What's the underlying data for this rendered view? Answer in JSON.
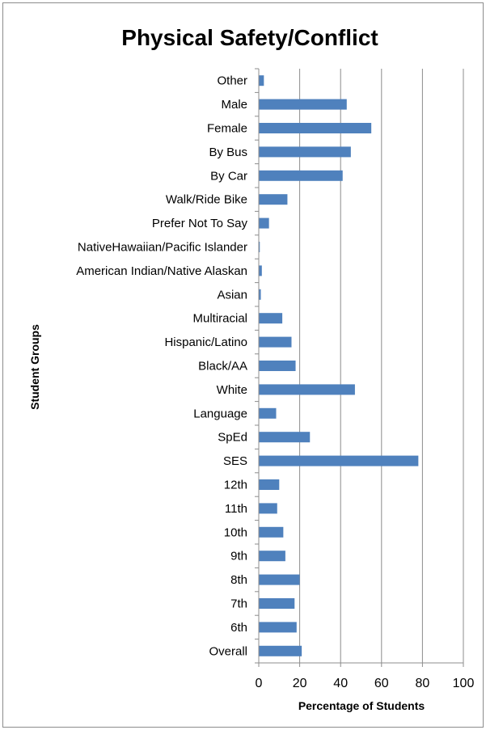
{
  "chart_data": {
    "type": "bar",
    "orientation": "horizontal",
    "title": "Physical Safety/Conflict",
    "xlabel": "Percentage of Students",
    "ylabel": "Student Groups",
    "xlim": [
      0,
      100
    ],
    "x_ticks": [
      "0",
      "20",
      "40",
      "60",
      "80",
      "100"
    ],
    "grid": true,
    "legend": "none",
    "bar_color": "#4f81bd",
    "categories": [
      "Other",
      "Male",
      "Female",
      "By Bus",
      "By Car",
      "Walk/Ride Bike",
      "Prefer Not To Say",
      "NativeHawaiian/Pacific Islander",
      "American Indian/Native Alaskan",
      "Asian",
      "Multiracial",
      "Hispanic/Latino",
      "Black/AA",
      "White",
      "Language",
      "SpEd",
      "SES",
      "12th",
      "11th",
      "10th",
      "9th",
      "8th",
      "7th",
      "6th",
      "Overall"
    ],
    "values": [
      2.5,
      43,
      55,
      45,
      41,
      14,
      5,
      0.5,
      1.5,
      1,
      11.5,
      16,
      18,
      47,
      8.5,
      25,
      78,
      10,
      9,
      12,
      13,
      20,
      17.5,
      18.5,
      21
    ]
  }
}
